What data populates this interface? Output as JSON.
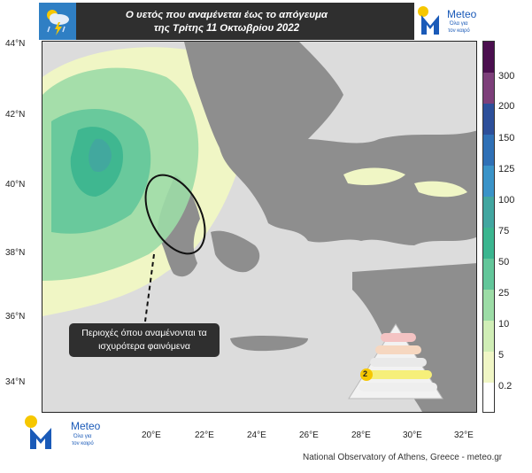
{
  "header": {
    "title_line1": "Ο υετός που αναμένεται έως το απόγευμα",
    "title_line2": "της Τρίτης 11 Οκτωβρίου 2022"
  },
  "logo": {
    "brand": "Meteo",
    "tagline_line1": "Όλα για",
    "tagline_line2": "τον καιρό",
    "brand_color": "#1a5ab8",
    "accent_color": "#f6c700"
  },
  "map": {
    "lat_labels": [
      "44°N",
      "42°N",
      "40°N",
      "38°N",
      "36°N",
      "34°N"
    ],
    "lon_labels": [
      "20°E",
      "22°E",
      "24°E",
      "26°E",
      "28°E",
      "30°E",
      "32°E"
    ],
    "land_color": "#8e8e8e",
    "sea_color": "#dcdcdc"
  },
  "colorbar": {
    "ticks": [
      "300",
      "200",
      "150",
      "125",
      "100",
      "75",
      "50",
      "25",
      "10",
      "5",
      "0.2"
    ],
    "colors": [
      "#4b0f4f",
      "#7d3f7a",
      "#2d4f9a",
      "#2f70b6",
      "#3a93c8",
      "#42a6a0",
      "#3bb58f",
      "#63c69a",
      "#9cdca6",
      "#d0eeb6",
      "#f0f6c5",
      "#ffffff"
    ]
  },
  "callout": {
    "line1": "Περιοχές όπου αναμένονται τα",
    "line2": "ισχυρότερα φαινόμενα"
  },
  "warning_legend": {
    "level_number": "2"
  },
  "footer": {
    "credit": "National Observatory of Athens, Greece - meteo.gr"
  }
}
